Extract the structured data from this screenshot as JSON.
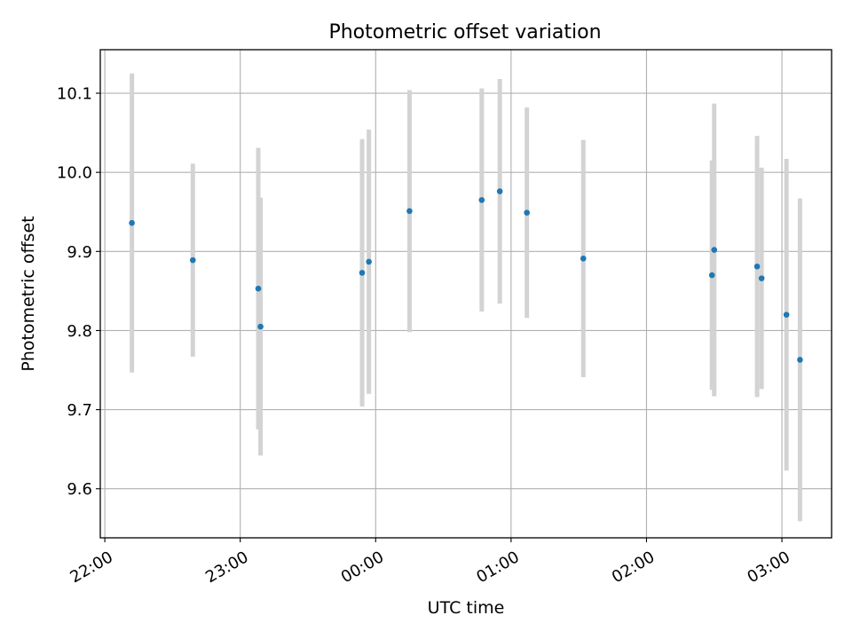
{
  "chart_data": {
    "type": "scatter",
    "title": "Photometric offset variation",
    "xlabel": "UTC time",
    "ylabel": "Photometric offset",
    "x_tick_labels": [
      "22:00",
      "23:00",
      "00:00",
      "01:00",
      "02:00",
      "03:00"
    ],
    "y_tick_labels": [
      "9.6",
      "9.7",
      "9.8",
      "9.9",
      "10.0",
      "10.1"
    ],
    "y_ticks": [
      9.6,
      9.7,
      9.8,
      9.9,
      10.0,
      10.1
    ],
    "x_ticks": [
      "22:00",
      "23:00",
      "00:00",
      "01:00",
      "02:00",
      "03:00"
    ],
    "xlim": [
      "21:58",
      "03:22"
    ],
    "ylim": [
      9.538,
      10.155
    ],
    "grid": true,
    "point_color": "#1f77b4",
    "errorbar_color": "#d3d3d3",
    "series": [
      {
        "x": [
          "22:12",
          "22:39",
          "23:08",
          "23:09",
          "23:54",
          "23:57",
          "00:15",
          "00:47",
          "00:55",
          "01:07",
          "01:32",
          "02:29",
          "02:30",
          "02:49",
          "02:51",
          "03:02",
          "03:08"
        ],
        "y": [
          9.936,
          9.889,
          9.853,
          9.805,
          9.873,
          9.887,
          9.951,
          9.965,
          9.976,
          9.949,
          9.891,
          9.87,
          9.902,
          9.881,
          9.866,
          9.82,
          9.763
        ],
        "err": [
          0.189,
          0.122,
          0.178,
          0.163,
          0.169,
          0.167,
          0.153,
          0.141,
          0.142,
          0.133,
          0.15,
          0.145,
          0.185,
          0.165,
          0.14,
          0.197,
          0.204
        ]
      }
    ]
  }
}
